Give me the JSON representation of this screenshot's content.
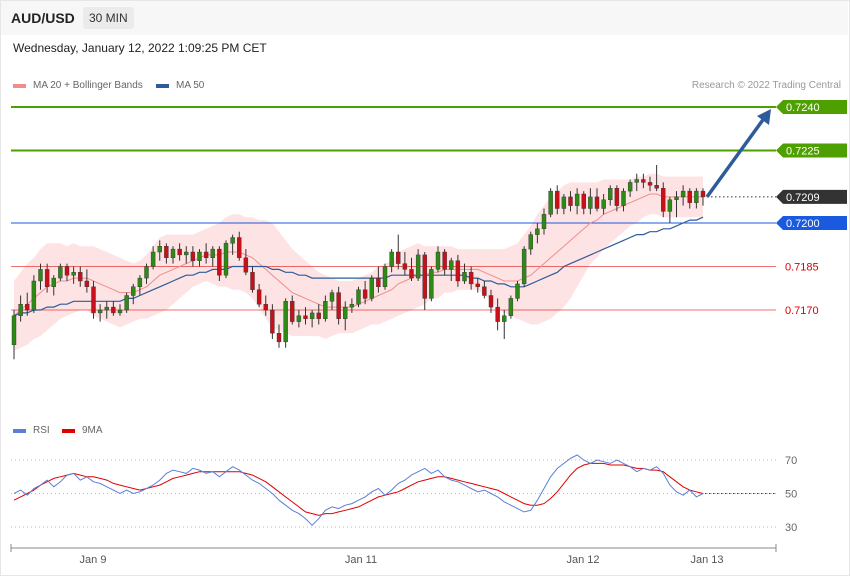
{
  "header": {
    "symbol": "AUD/USD",
    "timeframe": "30 MIN",
    "datetime": "Wednesday, January 12, 2022 1:09:25 PM CET"
  },
  "legend": {
    "ma20": {
      "label": "MA 20 + Bollinger Bands",
      "color": "#f28c8c"
    },
    "ma50": {
      "label": "MA 50",
      "color": "#2e5c9a"
    },
    "credit": "Research © 2022 Trading Central"
  },
  "rsi_legend": {
    "rsi": {
      "label": "RSI",
      "color": "#5b7fd6"
    },
    "ma9": {
      "label": "9MA",
      "color": "#e00000"
    }
  },
  "chart_data": [
    {
      "type": "candlestick",
      "title": "AUD/USD 30 MIN",
      "ylim": [
        0.715,
        0.725
      ],
      "x_ticks": [
        "Jan 9",
        "Jan 11",
        "Jan 12",
        "Jan 13"
      ],
      "current_price": {
        "value": "0.7209",
        "color": "#333333"
      },
      "levels": [
        {
          "value": "0.7240",
          "kind": "target",
          "color": "#4ea000"
        },
        {
          "value": "0.7225",
          "kind": "resistance",
          "color": "#4ea000"
        },
        {
          "value": "0.7200",
          "kind": "pivot",
          "color": "#1a5adf"
        },
        {
          "value": "0.7185",
          "kind": "support",
          "color": "#e00000"
        },
        {
          "value": "0.7170",
          "kind": "support",
          "color": "#e00000"
        }
      ],
      "candles_ohlc": [
        [
          0.7158,
          0.717,
          0.7153,
          0.7168
        ],
        [
          0.7168,
          0.7175,
          0.7166,
          0.7172
        ],
        [
          0.7172,
          0.7176,
          0.7168,
          0.717
        ],
        [
          0.717,
          0.7182,
          0.7169,
          0.718
        ],
        [
          0.718,
          0.7186,
          0.7177,
          0.7184
        ],
        [
          0.7184,
          0.7186,
          0.7176,
          0.7178
        ],
        [
          0.7178,
          0.7182,
          0.7175,
          0.7181
        ],
        [
          0.7181,
          0.7186,
          0.718,
          0.7185
        ],
        [
          0.7185,
          0.7186,
          0.718,
          0.7182
        ],
        [
          0.7182,
          0.7185,
          0.7179,
          0.7183
        ],
        [
          0.7183,
          0.7185,
          0.7178,
          0.718
        ],
        [
          0.718,
          0.7184,
          0.7176,
          0.7178
        ],
        [
          0.7178,
          0.718,
          0.7167,
          0.7169
        ],
        [
          0.7169,
          0.7172,
          0.7166,
          0.717
        ],
        [
          0.717,
          0.7173,
          0.7167,
          0.7171
        ],
        [
          0.7171,
          0.7173,
          0.7168,
          0.7169
        ],
        [
          0.7169,
          0.7172,
          0.7168,
          0.717
        ],
        [
          0.717,
          0.7176,
          0.7169,
          0.7175
        ],
        [
          0.7175,
          0.7179,
          0.7172,
          0.7178
        ],
        [
          0.7178,
          0.7182,
          0.7175,
          0.7181
        ],
        [
          0.7181,
          0.7186,
          0.7179,
          0.7185
        ],
        [
          0.7185,
          0.7192,
          0.7184,
          0.719
        ],
        [
          0.719,
          0.7194,
          0.7187,
          0.7192
        ],
        [
          0.7192,
          0.7193,
          0.7186,
          0.7188
        ],
        [
          0.7188,
          0.7192,
          0.7186,
          0.7191
        ],
        [
          0.7191,
          0.7193,
          0.7187,
          0.7189
        ],
        [
          0.7189,
          0.7192,
          0.7186,
          0.719
        ],
        [
          0.719,
          0.7192,
          0.7185,
          0.7187
        ],
        [
          0.7187,
          0.7191,
          0.7185,
          0.719
        ],
        [
          0.719,
          0.7193,
          0.7186,
          0.7188
        ],
        [
          0.7188,
          0.7192,
          0.7185,
          0.7191
        ],
        [
          0.7191,
          0.7192,
          0.718,
          0.7182
        ],
        [
          0.7182,
          0.7194,
          0.7181,
          0.7193
        ],
        [
          0.7193,
          0.7196,
          0.7189,
          0.7195
        ],
        [
          0.7195,
          0.7197,
          0.7187,
          0.7188
        ],
        [
          0.7188,
          0.7191,
          0.7182,
          0.7183
        ],
        [
          0.7183,
          0.7185,
          0.7176,
          0.7177
        ],
        [
          0.7177,
          0.7179,
          0.7171,
          0.7172
        ],
        [
          0.7172,
          0.7175,
          0.7168,
          0.717
        ],
        [
          0.717,
          0.7172,
          0.716,
          0.7162
        ],
        [
          0.7162,
          0.7165,
          0.7157,
          0.7159
        ],
        [
          0.7159,
          0.7174,
          0.7157,
          0.7173
        ],
        [
          0.7173,
          0.7175,
          0.7165,
          0.7166
        ],
        [
          0.7166,
          0.717,
          0.7164,
          0.7168
        ],
        [
          0.7168,
          0.7171,
          0.7165,
          0.7167
        ],
        [
          0.7167,
          0.717,
          0.7164,
          0.7169
        ],
        [
          0.7169,
          0.7172,
          0.7165,
          0.7167
        ],
        [
          0.7167,
          0.7175,
          0.7166,
          0.7173
        ],
        [
          0.7173,
          0.7177,
          0.717,
          0.7176
        ],
        [
          0.7176,
          0.7178,
          0.7165,
          0.7167
        ],
        [
          0.7167,
          0.7173,
          0.7163,
          0.7171
        ],
        [
          0.7171,
          0.7174,
          0.7169,
          0.7172
        ],
        [
          0.7172,
          0.7178,
          0.7171,
          0.7177
        ],
        [
          0.7177,
          0.718,
          0.7172,
          0.7174
        ],
        [
          0.7174,
          0.7182,
          0.7173,
          0.7181
        ],
        [
          0.7181,
          0.7185,
          0.7176,
          0.7178
        ],
        [
          0.7178,
          0.7186,
          0.7177,
          0.7185
        ],
        [
          0.7185,
          0.7191,
          0.7183,
          0.719
        ],
        [
          0.719,
          0.7196,
          0.7184,
          0.7186
        ],
        [
          0.7186,
          0.719,
          0.7182,
          0.7184
        ],
        [
          0.7184,
          0.7188,
          0.718,
          0.7181
        ],
        [
          0.7181,
          0.7191,
          0.718,
          0.7189
        ],
        [
          0.7189,
          0.719,
          0.717,
          0.7174
        ],
        [
          0.7174,
          0.7185,
          0.7173,
          0.7184
        ],
        [
          0.7184,
          0.7192,
          0.7183,
          0.719
        ],
        [
          0.719,
          0.7191,
          0.7182,
          0.7184
        ],
        [
          0.7184,
          0.7188,
          0.718,
          0.7187
        ],
        [
          0.7187,
          0.7189,
          0.7178,
          0.718
        ],
        [
          0.718,
          0.7186,
          0.7179,
          0.7183
        ],
        [
          0.7183,
          0.7185,
          0.7177,
          0.7179
        ],
        [
          0.7179,
          0.7181,
          0.7176,
          0.7178
        ],
        [
          0.7178,
          0.718,
          0.7174,
          0.7175
        ],
        [
          0.7175,
          0.7177,
          0.7169,
          0.7171
        ],
        [
          0.7171,
          0.7174,
          0.7163,
          0.7166
        ],
        [
          0.7166,
          0.717,
          0.716,
          0.7168
        ],
        [
          0.7168,
          0.7175,
          0.7167,
          0.7174
        ],
        [
          0.7174,
          0.718,
          0.7173,
          0.7179
        ],
        [
          0.7179,
          0.7192,
          0.7178,
          0.7191
        ],
        [
          0.7191,
          0.7197,
          0.7189,
          0.7196
        ],
        [
          0.7196,
          0.72,
          0.7193,
          0.7198
        ],
        [
          0.7198,
          0.7205,
          0.7196,
          0.7203
        ],
        [
          0.7203,
          0.7212,
          0.7202,
          0.7211
        ],
        [
          0.7211,
          0.7213,
          0.7203,
          0.7205
        ],
        [
          0.7205,
          0.721,
          0.7203,
          0.7209
        ],
        [
          0.7209,
          0.7211,
          0.7204,
          0.7206
        ],
        [
          0.7206,
          0.7212,
          0.7203,
          0.721
        ],
        [
          0.721,
          0.7211,
          0.7203,
          0.7205
        ],
        [
          0.7205,
          0.7212,
          0.7203,
          0.7209
        ],
        [
          0.7209,
          0.7212,
          0.7204,
          0.7205
        ],
        [
          0.7205,
          0.721,
          0.7203,
          0.7208
        ],
        [
          0.7208,
          0.7213,
          0.7206,
          0.7212
        ],
        [
          0.7212,
          0.7213,
          0.7204,
          0.7206
        ],
        [
          0.7206,
          0.7212,
          0.7204,
          0.7211
        ],
        [
          0.7211,
          0.7215,
          0.7209,
          0.7214
        ],
        [
          0.7214,
          0.7217,
          0.7211,
          0.7215
        ],
        [
          0.7215,
          0.7217,
          0.7212,
          0.7214
        ],
        [
          0.7214,
          0.7216,
          0.7211,
          0.7213
        ],
        [
          0.7213,
          0.722,
          0.7211,
          0.7212
        ],
        [
          0.7212,
          0.7214,
          0.7202,
          0.7204
        ],
        [
          0.7204,
          0.7209,
          0.72,
          0.7208
        ],
        [
          0.7208,
          0.7211,
          0.7202,
          0.7209
        ],
        [
          0.7209,
          0.7213,
          0.7206,
          0.7211
        ],
        [
          0.7211,
          0.7212,
          0.7205,
          0.7207
        ],
        [
          0.7207,
          0.7212,
          0.7205,
          0.7211
        ],
        [
          0.7211,
          0.7212,
          0.7206,
          0.7209
        ]
      ],
      "ma20": [
        0.7168,
        0.717,
        0.7172,
        0.7174,
        0.7176,
        0.7178,
        0.7179,
        0.718,
        0.718,
        0.7181,
        0.7181,
        0.7181,
        0.718,
        0.7179,
        0.7178,
        0.7177,
        0.7176,
        0.7176,
        0.7176,
        0.7177,
        0.7178,
        0.718,
        0.7182,
        0.7183,
        0.7184,
        0.7185,
        0.7186,
        0.7187,
        0.7188,
        0.7189,
        0.7189,
        0.7189,
        0.719,
        0.719,
        0.719,
        0.7189,
        0.7188,
        0.7186,
        0.7184,
        0.7182,
        0.718,
        0.7178,
        0.7176,
        0.7175,
        0.7174,
        0.7173,
        0.7172,
        0.7171,
        0.7171,
        0.7171,
        0.7171,
        0.7171,
        0.7172,
        0.7173,
        0.7174,
        0.7175,
        0.7176,
        0.7177,
        0.7179,
        0.718,
        0.7181,
        0.7182,
        0.7182,
        0.7183,
        0.7183,
        0.7184,
        0.7184,
        0.7184,
        0.7184,
        0.7184,
        0.7184,
        0.7183,
        0.7182,
        0.7181,
        0.718,
        0.718,
        0.718,
        0.7181,
        0.7182,
        0.7184,
        0.7186,
        0.7188,
        0.719,
        0.7192,
        0.7194,
        0.7196,
        0.7198,
        0.72,
        0.7201,
        0.7203,
        0.7204,
        0.7205,
        0.7206,
        0.7207,
        0.7208,
        0.7209,
        0.721,
        0.721,
        0.7209,
        0.7209,
        0.7209,
        0.7209,
        0.7209,
        0.7209,
        0.7209
      ],
      "ma50": [
        0.7168,
        0.7169,
        0.7169,
        0.717,
        0.717,
        0.7171,
        0.7171,
        0.7172,
        0.7172,
        0.7173,
        0.7173,
        0.7173,
        0.7173,
        0.7173,
        0.7173,
        0.7173,
        0.7173,
        0.7174,
        0.7174,
        0.7175,
        0.7176,
        0.7177,
        0.7178,
        0.7179,
        0.718,
        0.7181,
        0.7182,
        0.7182,
        0.7183,
        0.7183,
        0.7184,
        0.7184,
        0.7184,
        0.7185,
        0.7185,
        0.7185,
        0.7185,
        0.7185,
        0.7185,
        0.7184,
        0.7184,
        0.7183,
        0.7183,
        0.7182,
        0.7182,
        0.7181,
        0.7181,
        0.7181,
        0.7181,
        0.7181,
        0.7181,
        0.7181,
        0.7181,
        0.7181,
        0.7181,
        0.7181,
        0.7181,
        0.7182,
        0.7182,
        0.7182,
        0.7182,
        0.7182,
        0.7182,
        0.7182,
        0.7182,
        0.7182,
        0.7182,
        0.7182,
        0.7182,
        0.7181,
        0.7181,
        0.718,
        0.718,
        0.7179,
        0.7179,
        0.7178,
        0.7178,
        0.7178,
        0.7179,
        0.718,
        0.7181,
        0.7182,
        0.7183,
        0.7185,
        0.7186,
        0.7187,
        0.7188,
        0.7189,
        0.719,
        0.7191,
        0.7192,
        0.7193,
        0.7194,
        0.7195,
        0.7196,
        0.7196,
        0.7197,
        0.7197,
        0.7198,
        0.7198,
        0.7199,
        0.72,
        0.7201,
        0.7201,
        0.7202
      ],
      "bb_width": [
        0.0012,
        0.0013,
        0.0014,
        0.0014,
        0.0015,
        0.0015,
        0.0014,
        0.0013,
        0.0012,
        0.0012,
        0.0011,
        0.0011,
        0.0012,
        0.0012,
        0.0012,
        0.0012,
        0.0012,
        0.0011,
        0.001,
        0.001,
        0.0011,
        0.0012,
        0.0013,
        0.0013,
        0.0012,
        0.0011,
        0.001,
        0.0009,
        0.0009,
        0.0009,
        0.001,
        0.0011,
        0.0012,
        0.0013,
        0.0013,
        0.0013,
        0.0014,
        0.0015,
        0.0017,
        0.0018,
        0.0017,
        0.0016,
        0.0015,
        0.0014,
        0.0013,
        0.0012,
        0.0011,
        0.0011,
        0.001,
        0.0009,
        0.0009,
        0.0009,
        0.0009,
        0.0009,
        0.0009,
        0.001,
        0.001,
        0.001,
        0.0011,
        0.0011,
        0.0011,
        0.0011,
        0.001,
        0.0009,
        0.0009,
        0.0008,
        0.0008,
        0.0007,
        0.0007,
        0.0007,
        0.0007,
        0.0008,
        0.0009,
        0.001,
        0.0011,
        0.0012,
        0.0013,
        0.0015,
        0.0017,
        0.0019,
        0.002,
        0.0021,
        0.0021,
        0.0021,
        0.002,
        0.0018,
        0.0016,
        0.0014,
        0.0013,
        0.0012,
        0.0011,
        0.001,
        0.0009,
        0.0008,
        0.0008,
        0.0007,
        0.0007,
        0.0007,
        0.0007,
        0.0007,
        0.0007,
        0.0007,
        0.0007,
        0.0007,
        0.0007
      ]
    },
    {
      "type": "line",
      "ylim": [
        20,
        80
      ],
      "y_ticks": [
        "70",
        "50",
        "30"
      ],
      "series": [
        {
          "name": "RSI",
          "values": [
            50,
            52,
            49,
            53,
            55,
            58,
            54,
            57,
            61,
            62,
            58,
            60,
            57,
            56,
            54,
            52,
            50,
            52,
            50,
            51,
            53,
            55,
            58,
            62,
            64,
            63,
            62,
            65,
            64,
            62,
            63,
            60,
            63,
            66,
            64,
            61,
            58,
            56,
            53,
            50,
            46,
            43,
            40,
            38,
            35,
            31,
            35,
            40,
            42,
            41,
            43,
            44,
            46,
            48,
            51,
            53,
            49,
            52,
            56,
            58,
            61,
            63,
            65,
            62,
            64,
            60,
            58,
            57,
            55,
            53,
            51,
            52,
            50,
            48,
            45,
            43,
            41,
            39,
            40,
            46,
            53,
            60,
            65,
            68,
            71,
            73,
            70,
            68,
            70,
            69,
            68,
            70,
            68,
            66,
            63,
            65,
            64,
            66,
            62,
            55,
            51,
            49,
            52,
            48,
            50
          ]
        },
        {
          "name": "9MA",
          "values": [
            46,
            48,
            50,
            52,
            55,
            57,
            59,
            60,
            61,
            62,
            61,
            60,
            60,
            59,
            58,
            56,
            55,
            54,
            53,
            52,
            53,
            54,
            55,
            57,
            59,
            60,
            61,
            62,
            63,
            63,
            63,
            63,
            63,
            63,
            63,
            62,
            61,
            59,
            57,
            54,
            51,
            48,
            45,
            42,
            39,
            38,
            37,
            38,
            38,
            39,
            40,
            41,
            42,
            44,
            46,
            48,
            49,
            50,
            51,
            53,
            55,
            57,
            58,
            59,
            60,
            60,
            59,
            58,
            57,
            56,
            55,
            54,
            53,
            52,
            50,
            48,
            46,
            44,
            43,
            43,
            44,
            47,
            51,
            56,
            61,
            65,
            67,
            68,
            68,
            68,
            67,
            67,
            67,
            66,
            65,
            65,
            64,
            64,
            63,
            60,
            57,
            54,
            52,
            51,
            50
          ]
        }
      ]
    }
  ]
}
